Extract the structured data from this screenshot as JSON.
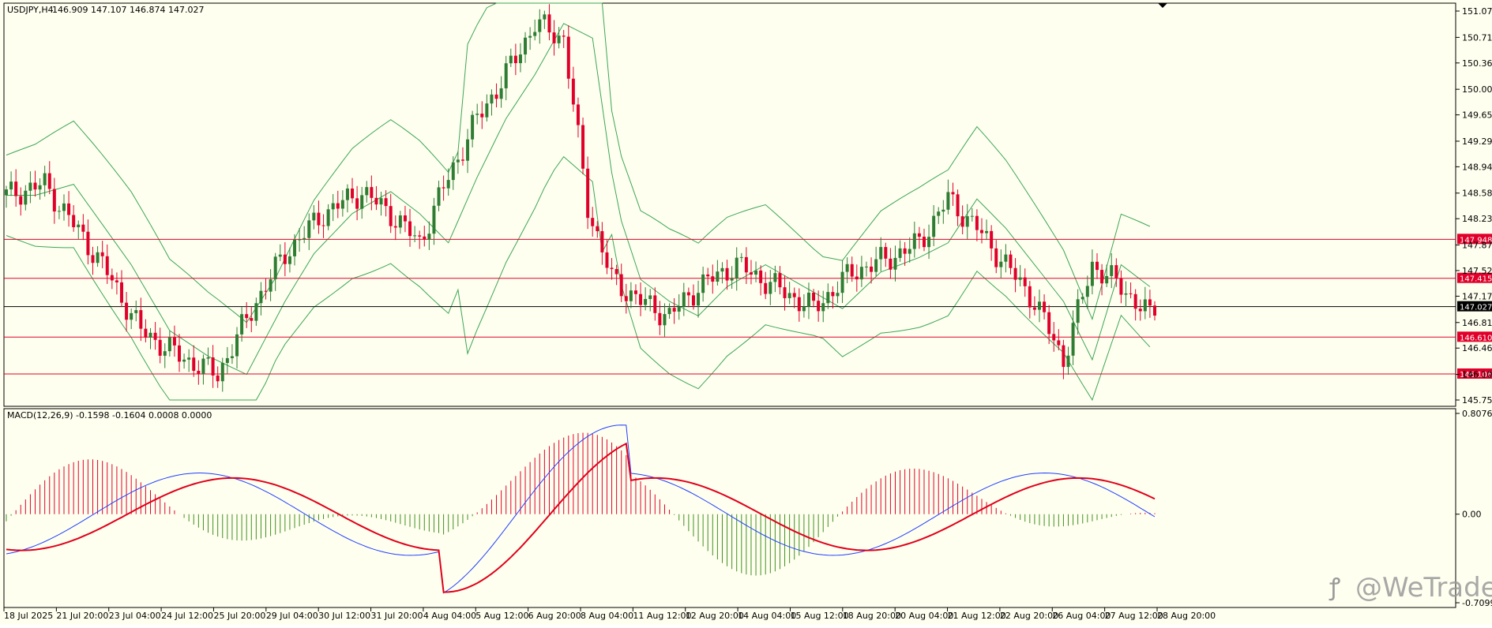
{
  "header": {
    "symbol": "USDJPY,H4",
    "ohlc": "146.909 147.107 146.874 147.027"
  },
  "macd_header": "MACD(12,26,9) -0.1598 -0.1604 0.0008 0.0000",
  "watermark": "@WeTrade",
  "colors": {
    "background": "#fffff0",
    "bull": "#2e7d32",
    "bear": "#e0002a",
    "level_line": "#e0002a",
    "band": "#3aa655",
    "macd_line": "#1f3fff",
    "signal_line": "#e0001a",
    "hist_pos": "#e0002a",
    "hist_neg": "#3f8f1f"
  },
  "chart_data": {
    "type": "candlestick",
    "price_axis": {
      "ticks": [
        "151.070",
        "150.710",
        "150.360",
        "150.000",
        "149.650",
        "149.290",
        "148.940",
        "148.580",
        "148.230",
        "147.870",
        "147.520",
        "147.170",
        "146.810",
        "146.460",
        "146.100",
        "145.750"
      ],
      "ylim": [
        145.72,
        151.12
      ]
    },
    "time_axis": [
      "18 Jul 2025",
      "21 Jul 20:00",
      "23 Jul 04:00",
      "24 Jul 12:00",
      "25 Jul 20:00",
      "29 Jul 04:00",
      "30 Jul 12:00",
      "31 Jul 20:00",
      "4 Aug 04:00",
      "5 Aug 12:00",
      "6 Aug 20:00",
      "8 Aug 04:00",
      "11 Aug 12:00",
      "12 Aug 20:00",
      "14 Aug 04:00",
      "15 Aug 12:00",
      "18 Aug 20:00",
      "20 Aug 04:00",
      "21 Aug 12:00",
      "22 Aug 20:00",
      "26 Aug 04:00",
      "27 Aug 12:00",
      "28 Aug 20:00"
    ],
    "horizontal_levels": [
      {
        "price": 147.948,
        "label": "147.948",
        "color": "#e0002a"
      },
      {
        "price": 147.415,
        "label": "147.415",
        "color": "#e0002a"
      },
      {
        "price": 147.027,
        "label": "147.027",
        "color": "#000000"
      },
      {
        "price": 146.61,
        "label": "146.610",
        "color": "#e0002a"
      },
      {
        "price": 146.106,
        "label": "146.106",
        "color": "#e0002a"
      }
    ],
    "macd_axis": {
      "ticks": [
        "0.8076",
        "0.00",
        "-0.7099"
      ],
      "ylim": [
        -0.7099,
        0.8076
      ]
    },
    "candle_count": 240
  }
}
